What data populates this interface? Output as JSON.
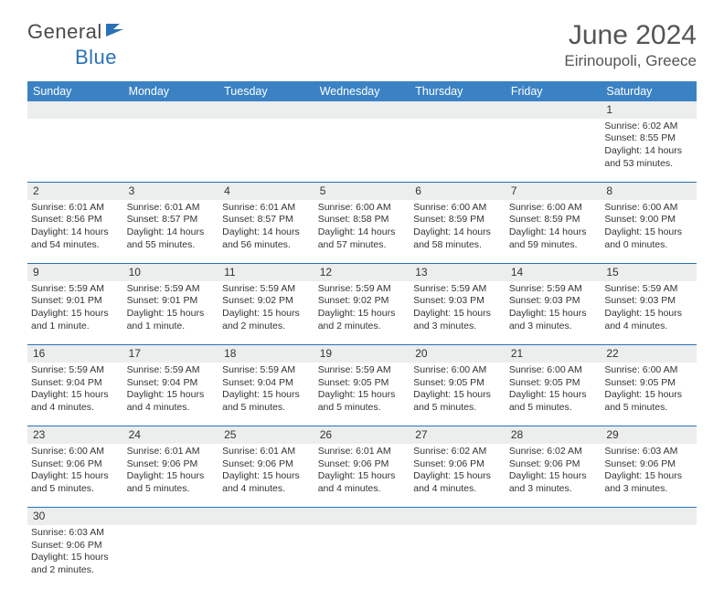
{
  "logo": {
    "text1": "General",
    "text2": "Blue",
    "icon_color": "#2a72b5"
  },
  "title": "June 2024",
  "location": "Eirinoupoli, Greece",
  "header_bg": "#3b82c4",
  "daynum_bg": "#eceded",
  "row_border": "#2a72b5",
  "days_of_week": [
    "Sunday",
    "Monday",
    "Tuesday",
    "Wednesday",
    "Thursday",
    "Friday",
    "Saturday"
  ],
  "weeks": [
    {
      "nums": [
        "",
        "",
        "",
        "",
        "",
        "",
        "1"
      ],
      "cells": [
        null,
        null,
        null,
        null,
        null,
        null,
        {
          "sr": "Sunrise: 6:02 AM",
          "ss": "Sunset: 8:55 PM",
          "d1": "Daylight: 14 hours",
          "d2": "and 53 minutes."
        }
      ]
    },
    {
      "nums": [
        "2",
        "3",
        "4",
        "5",
        "6",
        "7",
        "8"
      ],
      "cells": [
        {
          "sr": "Sunrise: 6:01 AM",
          "ss": "Sunset: 8:56 PM",
          "d1": "Daylight: 14 hours",
          "d2": "and 54 minutes."
        },
        {
          "sr": "Sunrise: 6:01 AM",
          "ss": "Sunset: 8:57 PM",
          "d1": "Daylight: 14 hours",
          "d2": "and 55 minutes."
        },
        {
          "sr": "Sunrise: 6:01 AM",
          "ss": "Sunset: 8:57 PM",
          "d1": "Daylight: 14 hours",
          "d2": "and 56 minutes."
        },
        {
          "sr": "Sunrise: 6:00 AM",
          "ss": "Sunset: 8:58 PM",
          "d1": "Daylight: 14 hours",
          "d2": "and 57 minutes."
        },
        {
          "sr": "Sunrise: 6:00 AM",
          "ss": "Sunset: 8:59 PM",
          "d1": "Daylight: 14 hours",
          "d2": "and 58 minutes."
        },
        {
          "sr": "Sunrise: 6:00 AM",
          "ss": "Sunset: 8:59 PM",
          "d1": "Daylight: 14 hours",
          "d2": "and 59 minutes."
        },
        {
          "sr": "Sunrise: 6:00 AM",
          "ss": "Sunset: 9:00 PM",
          "d1": "Daylight: 15 hours",
          "d2": "and 0 minutes."
        }
      ]
    },
    {
      "nums": [
        "9",
        "10",
        "11",
        "12",
        "13",
        "14",
        "15"
      ],
      "cells": [
        {
          "sr": "Sunrise: 5:59 AM",
          "ss": "Sunset: 9:01 PM",
          "d1": "Daylight: 15 hours",
          "d2": "and 1 minute."
        },
        {
          "sr": "Sunrise: 5:59 AM",
          "ss": "Sunset: 9:01 PM",
          "d1": "Daylight: 15 hours",
          "d2": "and 1 minute."
        },
        {
          "sr": "Sunrise: 5:59 AM",
          "ss": "Sunset: 9:02 PM",
          "d1": "Daylight: 15 hours",
          "d2": "and 2 minutes."
        },
        {
          "sr": "Sunrise: 5:59 AM",
          "ss": "Sunset: 9:02 PM",
          "d1": "Daylight: 15 hours",
          "d2": "and 2 minutes."
        },
        {
          "sr": "Sunrise: 5:59 AM",
          "ss": "Sunset: 9:03 PM",
          "d1": "Daylight: 15 hours",
          "d2": "and 3 minutes."
        },
        {
          "sr": "Sunrise: 5:59 AM",
          "ss": "Sunset: 9:03 PM",
          "d1": "Daylight: 15 hours",
          "d2": "and 3 minutes."
        },
        {
          "sr": "Sunrise: 5:59 AM",
          "ss": "Sunset: 9:03 PM",
          "d1": "Daylight: 15 hours",
          "d2": "and 4 minutes."
        }
      ]
    },
    {
      "nums": [
        "16",
        "17",
        "18",
        "19",
        "20",
        "21",
        "22"
      ],
      "cells": [
        {
          "sr": "Sunrise: 5:59 AM",
          "ss": "Sunset: 9:04 PM",
          "d1": "Daylight: 15 hours",
          "d2": "and 4 minutes."
        },
        {
          "sr": "Sunrise: 5:59 AM",
          "ss": "Sunset: 9:04 PM",
          "d1": "Daylight: 15 hours",
          "d2": "and 4 minutes."
        },
        {
          "sr": "Sunrise: 5:59 AM",
          "ss": "Sunset: 9:04 PM",
          "d1": "Daylight: 15 hours",
          "d2": "and 5 minutes."
        },
        {
          "sr": "Sunrise: 5:59 AM",
          "ss": "Sunset: 9:05 PM",
          "d1": "Daylight: 15 hours",
          "d2": "and 5 minutes."
        },
        {
          "sr": "Sunrise: 6:00 AM",
          "ss": "Sunset: 9:05 PM",
          "d1": "Daylight: 15 hours",
          "d2": "and 5 minutes."
        },
        {
          "sr": "Sunrise: 6:00 AM",
          "ss": "Sunset: 9:05 PM",
          "d1": "Daylight: 15 hours",
          "d2": "and 5 minutes."
        },
        {
          "sr": "Sunrise: 6:00 AM",
          "ss": "Sunset: 9:05 PM",
          "d1": "Daylight: 15 hours",
          "d2": "and 5 minutes."
        }
      ]
    },
    {
      "nums": [
        "23",
        "24",
        "25",
        "26",
        "27",
        "28",
        "29"
      ],
      "cells": [
        {
          "sr": "Sunrise: 6:00 AM",
          "ss": "Sunset: 9:06 PM",
          "d1": "Daylight: 15 hours",
          "d2": "and 5 minutes."
        },
        {
          "sr": "Sunrise: 6:01 AM",
          "ss": "Sunset: 9:06 PM",
          "d1": "Daylight: 15 hours",
          "d2": "and 5 minutes."
        },
        {
          "sr": "Sunrise: 6:01 AM",
          "ss": "Sunset: 9:06 PM",
          "d1": "Daylight: 15 hours",
          "d2": "and 4 minutes."
        },
        {
          "sr": "Sunrise: 6:01 AM",
          "ss": "Sunset: 9:06 PM",
          "d1": "Daylight: 15 hours",
          "d2": "and 4 minutes."
        },
        {
          "sr": "Sunrise: 6:02 AM",
          "ss": "Sunset: 9:06 PM",
          "d1": "Daylight: 15 hours",
          "d2": "and 4 minutes."
        },
        {
          "sr": "Sunrise: 6:02 AM",
          "ss": "Sunset: 9:06 PM",
          "d1": "Daylight: 15 hours",
          "d2": "and 3 minutes."
        },
        {
          "sr": "Sunrise: 6:03 AM",
          "ss": "Sunset: 9:06 PM",
          "d1": "Daylight: 15 hours",
          "d2": "and 3 minutes."
        }
      ]
    },
    {
      "nums": [
        "30",
        "",
        "",
        "",
        "",
        "",
        ""
      ],
      "cells": [
        {
          "sr": "Sunrise: 6:03 AM",
          "ss": "Sunset: 9:06 PM",
          "d1": "Daylight: 15 hours",
          "d2": "and 2 minutes."
        },
        null,
        null,
        null,
        null,
        null,
        null
      ]
    }
  ]
}
